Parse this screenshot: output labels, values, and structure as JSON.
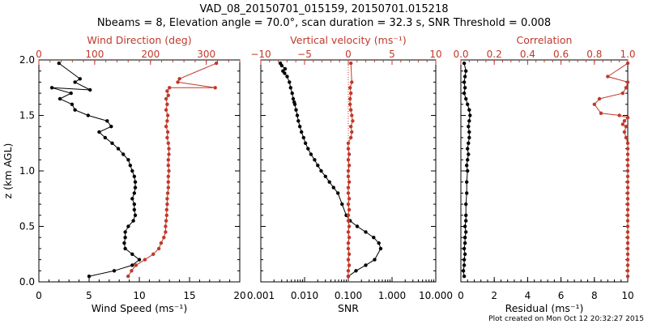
{
  "title": {
    "line1": "VAD_08_20150701_015159, 20150701.015218",
    "line2": "Nbeams = 8, Elevation angle = 70.0°, scan duration = 32.3 s, SNR Threshold = 0.008"
  },
  "footer": "Plot created on Mon Oct 12 20:32:27 2015",
  "colors": {
    "black_series": "#000000",
    "red_series": "#c0392b"
  },
  "chart_data": [
    {
      "type": "line",
      "ylabel": "z (km AGL)",
      "ylim": [
        0,
        2.0
      ],
      "yticks": [
        "0.0",
        "0.5",
        "1.0",
        "1.5",
        "2.0"
      ],
      "xlabel": "Wind Speed (ms⁻¹)",
      "xlim": [
        0,
        20
      ],
      "xticks": [
        "0",
        "5",
        "10",
        "15",
        "20"
      ],
      "top_xlabel": "Wind Direction (deg)",
      "top_xlim": [
        0,
        360
      ],
      "top_xticks": [
        "0",
        "100",
        "200",
        "300"
      ],
      "series": [
        {
          "color": "black",
          "axis": "bottom",
          "x": [
            5.0,
            7.5,
            9.3,
            10.0,
            9.3,
            8.6,
            8.5,
            8.6,
            8.6,
            8.9,
            9.4,
            9.6,
            9.5,
            9.5,
            9.3,
            9.5,
            9.6,
            9.6,
            9.5,
            9.3,
            9.1,
            8.9,
            8.4,
            7.9,
            7.3,
            6.6,
            6.0,
            7.2,
            6.8,
            4.9,
            3.6,
            3.3,
            2.1,
            3.2,
            1.3,
            5.1,
            3.6,
            4.1,
            2.0
          ],
          "y": [
            0.05,
            0.1,
            0.15,
            0.2,
            0.25,
            0.3,
            0.35,
            0.4,
            0.45,
            0.5,
            0.55,
            0.6,
            0.65,
            0.7,
            0.75,
            0.8,
            0.85,
            0.9,
            0.95,
            1.0,
            1.05,
            1.1,
            1.15,
            1.2,
            1.25,
            1.3,
            1.35,
            1.4,
            1.45,
            1.5,
            1.55,
            1.6,
            1.65,
            1.7,
            1.75,
            1.73,
            1.8,
            1.83,
            1.97
          ]
        },
        {
          "color": "red",
          "axis": "top",
          "x": [
            160,
            166,
            174,
            190,
            205,
            215,
            219,
            224,
            227,
            227,
            228,
            229,
            229,
            230,
            230,
            231,
            232,
            232,
            232,
            233,
            232,
            232,
            233,
            233,
            232,
            230,
            231,
            228,
            230,
            231,
            228,
            230,
            228,
            232,
            230,
            234,
            316,
            249,
            252,
            318
          ],
          "y": [
            0.05,
            0.1,
            0.15,
            0.2,
            0.25,
            0.3,
            0.35,
            0.4,
            0.45,
            0.5,
            0.55,
            0.6,
            0.65,
            0.7,
            0.75,
            0.8,
            0.85,
            0.9,
            0.95,
            1.0,
            1.05,
            1.1,
            1.15,
            1.2,
            1.25,
            1.3,
            1.35,
            1.4,
            1.45,
            1.5,
            1.55,
            1.6,
            1.65,
            1.68,
            1.72,
            1.75,
            1.75,
            1.8,
            1.83,
            1.97
          ]
        }
      ]
    },
    {
      "type": "line",
      "ylim": [
        0,
        2.0
      ],
      "xlabel": "SNR",
      "xlim": [
        0.001,
        10
      ],
      "xscale": "log",
      "xticks": [
        "0.001",
        "0.010",
        "0.100",
        "1.000",
        "10.000"
      ],
      "top_xlabel": "Vertical velocity (ms⁻¹)",
      "top_xlim": [
        -10,
        10
      ],
      "top_xticks": [
        "−10",
        "−5",
        "0",
        "5",
        "10"
      ],
      "series": [
        {
          "color": "black",
          "axis": "bottom",
          "x": [
            0.1,
            0.15,
            0.25,
            0.4,
            0.55,
            0.5,
            0.38,
            0.25,
            0.16,
            0.11,
            0.09,
            0.072,
            0.058,
            0.046,
            0.037,
            0.03,
            0.024,
            0.02,
            0.017,
            0.014,
            0.012,
            0.0105,
            0.0095,
            0.0085,
            0.0078,
            0.0072,
            0.0068,
            0.0064,
            0.006,
            0.0058,
            0.0055,
            0.0052,
            0.0048,
            0.0045,
            0.004,
            0.0035,
            0.0032,
            0.0036,
            0.003,
            0.0028
          ],
          "y": [
            0.05,
            0.1,
            0.15,
            0.2,
            0.3,
            0.35,
            0.4,
            0.45,
            0.5,
            0.55,
            0.6,
            0.7,
            0.8,
            0.85,
            0.9,
            0.95,
            1.0,
            1.05,
            1.1,
            1.15,
            1.2,
            1.25,
            1.3,
            1.35,
            1.4,
            1.45,
            1.5,
            1.55,
            1.6,
            1.62,
            1.65,
            1.7,
            1.75,
            1.8,
            1.85,
            1.88,
            1.9,
            1.92,
            1.95,
            1.97
          ]
        },
        {
          "color": "red",
          "axis": "top",
          "x": [
            0.0,
            0.0,
            0.1,
            0.0,
            0.1,
            0.0,
            0.0,
            0.1,
            0.0,
            0.1,
            0.0,
            0.0,
            0.1,
            0.0,
            0.1,
            0.0,
            0.0,
            0.1,
            0.0,
            0.0,
            0.1,
            0.0,
            0.1,
            0.0,
            0.0,
            0.3,
            0.4,
            0.3,
            0.5,
            0.4,
            0.3,
            0.2,
            0.2,
            0.3,
            0.2,
            0.4,
            0.3
          ],
          "y": [
            0.05,
            0.1,
            0.15,
            0.2,
            0.25,
            0.3,
            0.35,
            0.4,
            0.45,
            0.5,
            0.55,
            0.6,
            0.65,
            0.7,
            0.75,
            0.8,
            0.85,
            0.9,
            0.95,
            1.0,
            1.05,
            1.1,
            1.15,
            1.2,
            1.25,
            1.3,
            1.35,
            1.4,
            1.45,
            1.5,
            1.55,
            1.6,
            1.65,
            1.7,
            1.75,
            1.8,
            1.97
          ]
        }
      ]
    },
    {
      "type": "line",
      "ylim": [
        0,
        2.0
      ],
      "xlabel": "Residual (ms⁻¹)",
      "xlim": [
        0,
        10
      ],
      "xticks": [
        "0",
        "2",
        "4",
        "6",
        "8",
        "10"
      ],
      "top_xlabel": "Correlation",
      "top_xlim": [
        0,
        1.0
      ],
      "top_xticks": [
        "0.0",
        "0.2",
        "0.4",
        "0.6",
        "0.8",
        "1.0"
      ],
      "series": [
        {
          "color": "black",
          "axis": "bottom",
          "x": [
            0.2,
            0.15,
            0.2,
            0.2,
            0.25,
            0.2,
            0.25,
            0.25,
            0.3,
            0.25,
            0.3,
            0.3,
            0.3,
            0.35,
            0.35,
            0.4,
            0.35,
            0.4,
            0.45,
            0.4,
            0.45,
            0.5,
            0.5,
            0.45,
            0.5,
            0.55,
            0.5,
            0.4,
            0.3,
            0.2,
            0.25,
            0.2,
            0.25,
            0.3,
            0.2
          ],
          "y": [
            0.05,
            0.1,
            0.15,
            0.2,
            0.25,
            0.3,
            0.35,
            0.4,
            0.45,
            0.5,
            0.55,
            0.6,
            0.7,
            0.8,
            0.9,
            1.0,
            1.05,
            1.1,
            1.15,
            1.2,
            1.25,
            1.3,
            1.35,
            1.4,
            1.45,
            1.5,
            1.55,
            1.6,
            1.65,
            1.7,
            1.75,
            1.8,
            1.85,
            1.9,
            1.97
          ]
        },
        {
          "color": "red",
          "axis": "top",
          "x": [
            1.0,
            1.0,
            1.0,
            1.0,
            1.0,
            1.0,
            1.0,
            1.0,
            1.0,
            1.0,
            1.0,
            1.0,
            1.0,
            1.0,
            1.0,
            1.0,
            1.0,
            1.0,
            1.0,
            1.0,
            1.0,
            1.0,
            1.0,
            1.0,
            1.0,
            0.99,
            0.98,
            0.99,
            0.97,
            0.98,
            1.0,
            0.95,
            0.84,
            0.8,
            0.83,
            0.97,
            0.99,
            1.0,
            0.88,
            1.0
          ],
          "y": [
            0.05,
            0.1,
            0.15,
            0.2,
            0.25,
            0.3,
            0.35,
            0.4,
            0.45,
            0.5,
            0.55,
            0.6,
            0.65,
            0.7,
            0.75,
            0.8,
            0.85,
            0.9,
            0.95,
            1.0,
            1.05,
            1.1,
            1.15,
            1.2,
            1.25,
            1.3,
            1.35,
            1.4,
            1.42,
            1.45,
            1.48,
            1.5,
            1.52,
            1.6,
            1.65,
            1.7,
            1.75,
            1.8,
            1.85,
            1.97
          ]
        }
      ]
    }
  ]
}
